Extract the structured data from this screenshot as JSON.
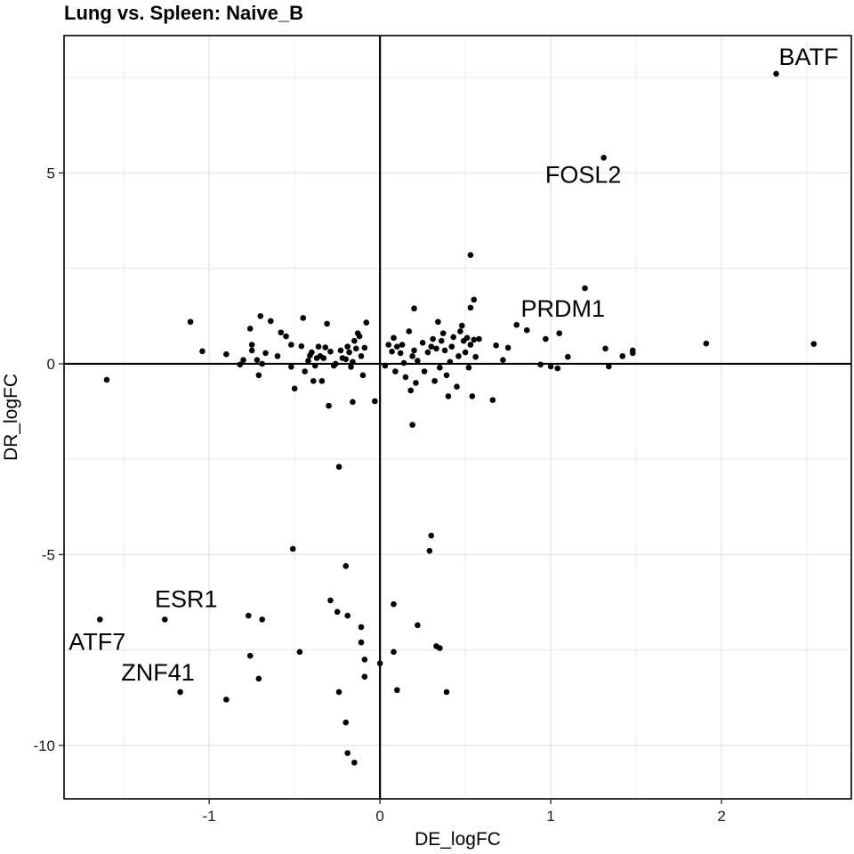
{
  "chart_data": {
    "type": "scatter",
    "title": "Lung vs. Spleen: Naive_B",
    "xlabel": "DE_logFC",
    "ylabel": "DR_logFC",
    "xlim": [
      -1.85,
      2.76
    ],
    "ylim": [
      -11.4,
      8.6
    ],
    "x_ticks": [
      -1,
      0,
      1,
      2
    ],
    "x_tick_labels": [
      "-1",
      "0",
      "1",
      "2"
    ],
    "y_ticks": [
      -10,
      -5,
      0,
      5
    ],
    "y_tick_labels": [
      "-10",
      "-5",
      "0",
      "5"
    ],
    "grid": true,
    "reference_lines": {
      "x": 0,
      "y": 0
    },
    "labels": [
      {
        "text": "BATF",
        "x": 2.32,
        "y": 7.6
      },
      {
        "text": "FOSL2",
        "x": 1.31,
        "y": 5.4
      },
      {
        "text": "PRDM1",
        "x": 0.8,
        "y": 1.02
      },
      {
        "text": "ESR1",
        "x": -1.26,
        "y": -6.7
      },
      {
        "text": "ATF7",
        "x": -1.64,
        "y": -6.7
      },
      {
        "text": "ZNF41",
        "x": -1.17,
        "y": -8.6
      }
    ],
    "points": [
      {
        "x": 2.32,
        "y": 7.6
      },
      {
        "x": 1.31,
        "y": 5.4
      },
      {
        "x": 0.53,
        "y": 2.85
      },
      {
        "x": 1.2,
        "y": 1.98
      },
      {
        "x": 0.55,
        "y": 1.68
      },
      {
        "x": 0.53,
        "y": 1.47
      },
      {
        "x": 0.2,
        "y": 1.45
      },
      {
        "x": 0.8,
        "y": 1.02
      },
      {
        "x": 0.86,
        "y": 0.88
      },
      {
        "x": 1.05,
        "y": 0.8
      },
      {
        "x": 0.97,
        "y": 0.65
      },
      {
        "x": 1.91,
        "y": 0.53
      },
      {
        "x": 2.54,
        "y": 0.52
      },
      {
        "x": 1.32,
        "y": 0.4
      },
      {
        "x": 1.48,
        "y": 0.35
      },
      {
        "x": 1.48,
        "y": 0.28
      },
      {
        "x": 1.42,
        "y": 0.2
      },
      {
        "x": 1.1,
        "y": 0.18
      },
      {
        "x": 0.94,
        "y": -0.02
      },
      {
        "x": 1.0,
        "y": -0.07
      },
      {
        "x": 1.04,
        "y": -0.12
      },
      {
        "x": 1.34,
        "y": -0.07
      },
      {
        "x": -1.6,
        "y": -0.42
      },
      {
        "x": -1.11,
        "y": 1.1
      },
      {
        "x": -1.04,
        "y": 0.33
      },
      {
        "x": -0.9,
        "y": 0.25
      },
      {
        "x": -0.82,
        "y": -0.02
      },
      {
        "x": -0.8,
        "y": 0.1
      },
      {
        "x": -0.76,
        "y": 0.92
      },
      {
        "x": -0.75,
        "y": 0.5
      },
      {
        "x": -0.75,
        "y": 0.35
      },
      {
        "x": -0.72,
        "y": 0.1
      },
      {
        "x": -0.71,
        "y": -0.3
      },
      {
        "x": -0.7,
        "y": 1.25
      },
      {
        "x": -0.69,
        "y": 0.0
      },
      {
        "x": -0.67,
        "y": 0.28
      },
      {
        "x": -0.64,
        "y": 1.12
      },
      {
        "x": -0.6,
        "y": 0.2
      },
      {
        "x": -0.58,
        "y": 0.82
      },
      {
        "x": -0.55,
        "y": 0.72
      },
      {
        "x": -0.52,
        "y": 0.5
      },
      {
        "x": -0.52,
        "y": -0.08
      },
      {
        "x": -0.5,
        "y": -0.65
      },
      {
        "x": -0.46,
        "y": 0.46
      },
      {
        "x": -0.45,
        "y": 1.2
      },
      {
        "x": -0.44,
        "y": -0.2
      },
      {
        "x": -0.42,
        "y": 0.08
      },
      {
        "x": -0.41,
        "y": 0.22
      },
      {
        "x": -0.4,
        "y": 0.3
      },
      {
        "x": -0.39,
        "y": -0.45
      },
      {
        "x": -0.38,
        "y": -0.05
      },
      {
        "x": -0.37,
        "y": 0.15
      },
      {
        "x": -0.36,
        "y": 0.45
      },
      {
        "x": -0.35,
        "y": 0.2
      },
      {
        "x": -0.34,
        "y": -0.45
      },
      {
        "x": -0.33,
        "y": 0.15
      },
      {
        "x": -0.32,
        "y": 0.43
      },
      {
        "x": -0.31,
        "y": 1.05
      },
      {
        "x": -0.3,
        "y": -1.1
      },
      {
        "x": -0.29,
        "y": 0.32
      },
      {
        "x": -0.27,
        "y": -0.05
      },
      {
        "x": -0.26,
        "y": 0.0
      },
      {
        "x": -0.23,
        "y": 0.35
      },
      {
        "x": -0.22,
        "y": 0.15
      },
      {
        "x": -0.2,
        "y": 0.12
      },
      {
        "x": -0.19,
        "y": 0.45
      },
      {
        "x": -0.18,
        "y": 0.3
      },
      {
        "x": -0.17,
        "y": -0.08
      },
      {
        "x": -0.16,
        "y": 0.05
      },
      {
        "x": -0.15,
        "y": 0.6
      },
      {
        "x": -0.14,
        "y": 0.4
      },
      {
        "x": -0.13,
        "y": 0.8
      },
      {
        "x": -0.12,
        "y": 0.72
      },
      {
        "x": -0.11,
        "y": 0.2
      },
      {
        "x": -0.1,
        "y": -0.3
      },
      {
        "x": -0.09,
        "y": 0.42
      },
      {
        "x": -0.08,
        "y": 1.08
      },
      {
        "x": -0.16,
        "y": -1.0
      },
      {
        "x": -0.03,
        "y": -0.98
      },
      {
        "x": 0.03,
        "y": -0.05
      },
      {
        "x": 0.05,
        "y": 0.5
      },
      {
        "x": 0.07,
        "y": 0.32
      },
      {
        "x": 0.08,
        "y": 0.68
      },
      {
        "x": 0.09,
        "y": -0.2
      },
      {
        "x": 0.1,
        "y": 0.45
      },
      {
        "x": 0.12,
        "y": 0.28
      },
      {
        "x": 0.13,
        "y": 0.5
      },
      {
        "x": 0.14,
        "y": 0.02
      },
      {
        "x": 0.15,
        "y": -0.35
      },
      {
        "x": 0.17,
        "y": 0.85
      },
      {
        "x": 0.18,
        "y": -0.7
      },
      {
        "x": 0.19,
        "y": 0.2
      },
      {
        "x": 0.2,
        "y": 0.35
      },
      {
        "x": 0.21,
        "y": -0.5
      },
      {
        "x": 0.22,
        "y": 0.08
      },
      {
        "x": 0.25,
        "y": 0.55
      },
      {
        "x": 0.26,
        "y": -0.2
      },
      {
        "x": 0.28,
        "y": 0.3
      },
      {
        "x": 0.3,
        "y": 0.45
      },
      {
        "x": 0.31,
        "y": 0.65
      },
      {
        "x": 0.32,
        "y": -0.45
      },
      {
        "x": 0.33,
        "y": 0.4
      },
      {
        "x": 0.34,
        "y": 1.1
      },
      {
        "x": 0.35,
        "y": -0.1
      },
      {
        "x": 0.36,
        "y": 0.6
      },
      {
        "x": 0.37,
        "y": 0.8
      },
      {
        "x": 0.38,
        "y": 0.35
      },
      {
        "x": 0.39,
        "y": -0.3
      },
      {
        "x": 0.4,
        "y": -0.85
      },
      {
        "x": 0.41,
        "y": 0.05
      },
      {
        "x": 0.42,
        "y": 0.45
      },
      {
        "x": 0.43,
        "y": 0.7
      },
      {
        "x": 0.45,
        "y": -0.6
      },
      {
        "x": 0.46,
        "y": 0.2
      },
      {
        "x": 0.47,
        "y": 0.85
      },
      {
        "x": 0.48,
        "y": 1.0
      },
      {
        "x": 0.49,
        "y": 0.6
      },
      {
        "x": 0.5,
        "y": 0.3
      },
      {
        "x": 0.51,
        "y": 0.68
      },
      {
        "x": 0.52,
        "y": -0.1
      },
      {
        "x": 0.53,
        "y": 0.5
      },
      {
        "x": 0.55,
        "y": 0.63
      },
      {
        "x": 0.56,
        "y": 0.18
      },
      {
        "x": 0.58,
        "y": 0.65
      },
      {
        "x": 0.54,
        "y": -0.85
      },
      {
        "x": 0.66,
        "y": -0.95
      },
      {
        "x": 0.68,
        "y": 0.48
      },
      {
        "x": 0.75,
        "y": 0.42
      },
      {
        "x": 0.72,
        "y": 0.1
      },
      {
        "x": 0.19,
        "y": -1.6
      },
      {
        "x": -0.24,
        "y": -2.7
      },
      {
        "x": 0.3,
        "y": -4.5
      },
      {
        "x": 0.29,
        "y": -4.9
      },
      {
        "x": -0.51,
        "y": -4.85
      },
      {
        "x": -0.2,
        "y": -5.3
      },
      {
        "x": -0.29,
        "y": -6.2
      },
      {
        "x": -0.25,
        "y": -6.5
      },
      {
        "x": -0.19,
        "y": -6.6
      },
      {
        "x": 0.08,
        "y": -6.3
      },
      {
        "x": -1.26,
        "y": -6.7
      },
      {
        "x": -0.77,
        "y": -6.6
      },
      {
        "x": -0.69,
        "y": -6.7
      },
      {
        "x": -1.64,
        "y": -6.7
      },
      {
        "x": -0.11,
        "y": -6.9
      },
      {
        "x": 0.22,
        "y": -6.85
      },
      {
        "x": -0.11,
        "y": -7.3
      },
      {
        "x": 0.33,
        "y": -7.4
      },
      {
        "x": 0.35,
        "y": -7.45
      },
      {
        "x": -0.47,
        "y": -7.55
      },
      {
        "x": 0.08,
        "y": -7.55
      },
      {
        "x": -0.76,
        "y": -7.65
      },
      {
        "x": -0.09,
        "y": -7.75
      },
      {
        "x": 0.0,
        "y": -7.85
      },
      {
        "x": -0.09,
        "y": -8.2
      },
      {
        "x": -0.71,
        "y": -8.25
      },
      {
        "x": 0.1,
        "y": -8.55
      },
      {
        "x": 0.39,
        "y": -8.6
      },
      {
        "x": -0.24,
        "y": -8.6
      },
      {
        "x": -1.17,
        "y": -8.6
      },
      {
        "x": -0.9,
        "y": -8.8
      },
      {
        "x": -0.2,
        "y": -9.4
      },
      {
        "x": -0.19,
        "y": -10.2
      },
      {
        "x": -0.15,
        "y": -10.45
      }
    ]
  }
}
